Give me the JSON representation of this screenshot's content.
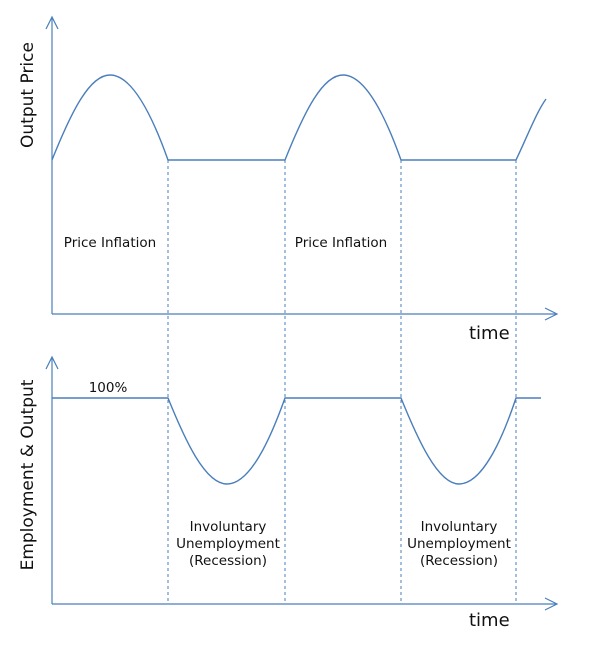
{
  "top_panel": {
    "y_axis_label": "Output Price",
    "x_axis_label": "time",
    "annotations": [
      "Price Inflation",
      "Price Inflation"
    ]
  },
  "bottom_panel": {
    "y_axis_label": "Employment & Output",
    "x_axis_label": "time",
    "level_label": "100%",
    "annotations": [
      [
        "Involuntary",
        "Unemployment",
        "(Recession)"
      ],
      [
        "Involuntary",
        "Unemployment",
        "(Recession)"
      ]
    ]
  },
  "colors": {
    "line": "#4a7ebb",
    "text": "#111111"
  }
}
